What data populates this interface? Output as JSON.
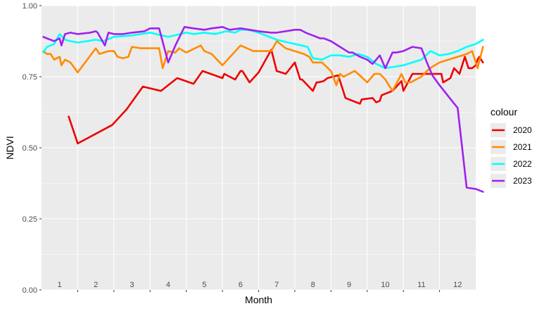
{
  "chart_data": {
    "type": "line",
    "xlabel": "Month",
    "ylabel": "NDVI",
    "ylim": [
      0,
      1
    ],
    "xlim": [
      0.5,
      12.5
    ],
    "yticks": [
      "0.00",
      "0.25",
      "0.50",
      "0.75",
      "1.00"
    ],
    "month_labels": [
      "1",
      "2",
      "3",
      "4",
      "5",
      "6",
      "7",
      "8",
      "9",
      "10",
      "11",
      "12"
    ],
    "legend_title": "colour",
    "legend_position": "right",
    "grid": true,
    "series": [
      {
        "name": "2020",
        "color": "#ee0000",
        "x": [
          1.25,
          1.5,
          2.45,
          2.85,
          3.3,
          3.8,
          4.25,
          4.7,
          4.95,
          5.5,
          5.55,
          5.85,
          6.0,
          6.05,
          6.25,
          6.5,
          6.85,
          7.0,
          7.25,
          7.5,
          7.65,
          7.7,
          8.0,
          8.1,
          8.15,
          8.3,
          8.4,
          8.7,
          8.9,
          9.3,
          9.35,
          9.65,
          9.75,
          9.85,
          9.9,
          10.2,
          10.45,
          10.5,
          10.75,
          11.0,
          11.15,
          11.55,
          11.6,
          11.8,
          11.9,
          12.05,
          12.15,
          12.2,
          12.3,
          12.4,
          12.45,
          12.5,
          12.55,
          12.6,
          12.7
        ],
        "y": [
          0.61,
          0.515,
          0.58,
          0.635,
          0.715,
          0.7,
          0.745,
          0.725,
          0.77,
          0.745,
          0.76,
          0.74,
          0.77,
          0.77,
          0.73,
          0.765,
          0.845,
          0.77,
          0.76,
          0.8,
          0.74,
          0.74,
          0.7,
          0.73,
          0.73,
          0.735,
          0.745,
          0.755,
          0.675,
          0.655,
          0.67,
          0.675,
          0.66,
          0.665,
          0.685,
          0.7,
          0.735,
          0.7,
          0.76,
          0.76,
          0.76,
          0.76,
          0.73,
          0.745,
          0.78,
          0.76,
          0.8,
          0.82,
          0.78,
          0.78,
          0.785,
          0.79,
          0.81,
          0.82,
          0.8
        ]
      },
      {
        "name": "2021",
        "color": "#ff8c00",
        "x": [
          0.55,
          0.65,
          0.75,
          0.85,
          1.0,
          1.05,
          1.15,
          1.3,
          1.5,
          2.0,
          2.1,
          2.35,
          2.5,
          2.6,
          2.75,
          2.9,
          3.0,
          3.25,
          3.75,
          3.85,
          4.0,
          4.2,
          4.3,
          4.5,
          4.9,
          5.0,
          5.2,
          5.5,
          6.0,
          6.35,
          6.5,
          6.85,
          7.0,
          7.25,
          7.75,
          7.9,
          8.0,
          8.25,
          8.5,
          8.65,
          8.75,
          8.85,
          9.0,
          9.15,
          9.25,
          9.5,
          9.7,
          9.85,
          10.0,
          10.1,
          10.2,
          10.45,
          10.55,
          10.7,
          10.85,
          11.0,
          11.15,
          11.3,
          11.5,
          11.75,
          12.0,
          12.25,
          12.4,
          12.55,
          12.7
        ],
        "y": [
          0.84,
          0.83,
          0.83,
          0.81,
          0.82,
          0.79,
          0.81,
          0.8,
          0.765,
          0.85,
          0.83,
          0.84,
          0.84,
          0.82,
          0.815,
          0.82,
          0.855,
          0.85,
          0.85,
          0.78,
          0.84,
          0.835,
          0.85,
          0.835,
          0.86,
          0.84,
          0.83,
          0.79,
          0.86,
          0.84,
          0.84,
          0.84,
          0.875,
          0.85,
          0.83,
          0.82,
          0.8,
          0.8,
          0.77,
          0.72,
          0.76,
          0.75,
          0.76,
          0.77,
          0.76,
          0.73,
          0.76,
          0.76,
          0.74,
          0.72,
          0.7,
          0.76,
          0.73,
          0.73,
          0.74,
          0.75,
          0.77,
          0.785,
          0.8,
          0.81,
          0.82,
          0.83,
          0.84,
          0.78,
          0.855
        ]
      },
      {
        "name": "2022",
        "color": "#00ffff",
        "x": [
          0.55,
          0.65,
          0.75,
          0.85,
          1.0,
          1.15,
          1.3,
          1.5,
          2.0,
          2.2,
          2.5,
          3.0,
          3.5,
          4.0,
          4.5,
          4.7,
          5.0,
          5.3,
          5.6,
          5.85,
          6.0,
          6.2,
          6.5,
          7.0,
          7.5,
          7.85,
          8.0,
          8.25,
          8.5,
          8.75,
          9.0,
          9.25,
          9.5,
          9.75,
          10.0,
          10.25,
          10.5,
          10.75,
          11.0,
          11.25,
          11.5,
          11.75,
          12.0,
          12.25,
          12.5,
          12.7
        ],
        "y": [
          0.835,
          0.855,
          0.86,
          0.865,
          0.9,
          0.88,
          0.875,
          0.87,
          0.88,
          0.875,
          0.89,
          0.895,
          0.905,
          0.89,
          0.905,
          0.9,
          0.905,
          0.9,
          0.91,
          0.905,
          0.915,
          0.915,
          0.905,
          0.88,
          0.865,
          0.855,
          0.815,
          0.81,
          0.825,
          0.825,
          0.82,
          0.83,
          0.82,
          0.795,
          0.78,
          0.785,
          0.79,
          0.8,
          0.81,
          0.84,
          0.825,
          0.83,
          0.84,
          0.855,
          0.865,
          0.88
        ]
      },
      {
        "name": "2023",
        "color": "#a020f0",
        "x": [
          0.55,
          0.65,
          0.75,
          0.85,
          1.0,
          1.05,
          1.15,
          1.3,
          1.5,
          1.85,
          2.0,
          2.05,
          2.25,
          2.35,
          2.5,
          2.75,
          3.0,
          3.35,
          3.5,
          3.75,
          4.0,
          4.2,
          4.45,
          4.7,
          5.0,
          5.2,
          5.5,
          5.7,
          6.0,
          6.25,
          6.5,
          6.85,
          7.0,
          7.25,
          7.5,
          7.65,
          7.8,
          8.0,
          8.2,
          8.3,
          8.5,
          8.75,
          9.0,
          9.1,
          9.3,
          9.5,
          9.65,
          9.85,
          10.0,
          10.2,
          10.3,
          10.5,
          10.75,
          11.0,
          11.15,
          11.3,
          11.5,
          11.75,
          12.0,
          12.25,
          12.5,
          12.7
        ],
        "y": [
          0.89,
          0.885,
          0.88,
          0.875,
          0.885,
          0.86,
          0.9,
          0.905,
          0.9,
          0.905,
          0.91,
          0.905,
          0.86,
          0.905,
          0.9,
          0.9,
          0.905,
          0.91,
          0.92,
          0.92,
          0.8,
          0.86,
          0.925,
          0.92,
          0.915,
          0.92,
          0.925,
          0.915,
          0.92,
          0.915,
          0.91,
          0.905,
          0.905,
          0.91,
          0.915,
          0.915,
          0.905,
          0.895,
          0.885,
          0.885,
          0.875,
          0.855,
          0.835,
          0.835,
          0.82,
          0.81,
          0.795,
          0.825,
          0.78,
          0.835,
          0.835,
          0.84,
          0.855,
          0.85,
          0.8,
          0.755,
          0.72,
          0.68,
          0.64,
          0.36,
          0.355,
          0.345
        ]
      }
    ]
  }
}
